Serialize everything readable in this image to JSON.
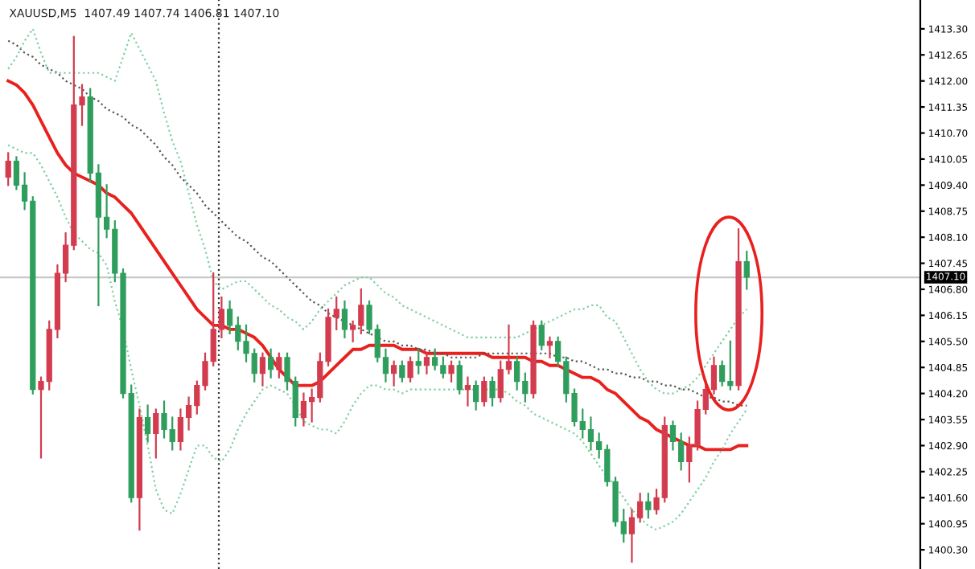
{
  "chart_data": {
    "type": "candlestick",
    "title": "XAUUSD,M5  1407.49 1407.74 1406.81 1407.10",
    "categories": [
      null,
      null,
      null,
      null,
      null,
      null,
      null,
      null,
      null,
      null,
      null,
      null,
      null,
      null,
      null,
      null,
      null,
      null,
      null,
      null,
      null,
      null,
      null,
      null,
      null,
      null,
      null,
      null,
      null,
      null,
      null,
      null,
      null,
      null,
      null,
      null,
      null,
      null,
      null,
      null,
      null,
      null,
      null,
      null,
      null,
      null,
      null,
      null,
      null,
      null,
      null,
      null,
      null,
      null,
      null,
      null,
      null,
      null,
      null,
      null,
      null,
      null,
      null,
      null,
      null,
      null,
      null,
      null,
      null,
      null,
      null,
      null,
      null,
      null,
      null,
      null,
      null,
      null,
      null,
      null,
      null,
      null,
      null,
      null,
      null,
      null,
      null,
      null,
      null,
      null,
      null
    ],
    "ohlc": [
      [
        1409.6,
        1410.2,
        1409.4,
        1410.0
      ],
      [
        1410.0,
        1410.1,
        1409.3,
        1409.4
      ],
      [
        1409.4,
        1409.7,
        1408.8,
        1409.0
      ],
      [
        1409.0,
        1409.1,
        1404.2,
        1404.3
      ],
      [
        1404.3,
        1404.6,
        1402.6,
        1404.5
      ],
      [
        1404.5,
        1406.0,
        1404.3,
        1405.8
      ],
      [
        1405.8,
        1407.4,
        1405.6,
        1407.2
      ],
      [
        1407.2,
        1408.2,
        1407.0,
        1407.9
      ],
      [
        1407.9,
        1413.1,
        1407.8,
        1411.4
      ],
      [
        1411.4,
        1411.9,
        1410.9,
        1411.6
      ],
      [
        1411.6,
        1411.8,
        1409.5,
        1409.7
      ],
      [
        1409.7,
        1409.9,
        1406.4,
        1408.6
      ],
      [
        1408.6,
        1409.4,
        1408.1,
        1408.3
      ],
      [
        1408.3,
        1408.5,
        1407.0,
        1407.2
      ],
      [
        1407.2,
        1407.3,
        1404.1,
        1404.2
      ],
      [
        1404.2,
        1404.4,
        1401.5,
        1401.6
      ],
      [
        1401.6,
        1403.8,
        1400.8,
        1403.6
      ],
      [
        1403.6,
        1403.9,
        1403.0,
        1403.2
      ],
      [
        1403.2,
        1403.8,
        1402.6,
        1403.7
      ],
      [
        1403.7,
        1404.0,
        1403.1,
        1403.3
      ],
      [
        1403.3,
        1403.6,
        1402.8,
        1403.0
      ],
      [
        1403.0,
        1403.8,
        1402.8,
        1403.6
      ],
      [
        1403.6,
        1404.1,
        1403.3,
        1403.9
      ],
      [
        1403.9,
        1404.5,
        1403.7,
        1404.4
      ],
      [
        1404.4,
        1405.2,
        1404.3,
        1405.0
      ],
      [
        1405.0,
        1407.2,
        1404.9,
        1405.8
      ],
      [
        1405.8,
        1406.6,
        1405.6,
        1406.3
      ],
      [
        1406.3,
        1406.5,
        1405.7,
        1405.9
      ],
      [
        1405.9,
        1406.1,
        1405.3,
        1405.5
      ],
      [
        1405.5,
        1405.9,
        1405.0,
        1405.2
      ],
      [
        1405.2,
        1405.3,
        1404.5,
        1404.7
      ],
      [
        1404.7,
        1405.2,
        1404.4,
        1405.1
      ],
      [
        1405.1,
        1405.3,
        1404.6,
        1404.8
      ],
      [
        1404.8,
        1405.2,
        1404.6,
        1405.1
      ],
      [
        1405.1,
        1405.2,
        1404.3,
        1404.5
      ],
      [
        1404.5,
        1404.6,
        1403.4,
        1403.6
      ],
      [
        1403.6,
        1404.2,
        1403.4,
        1404.0
      ],
      [
        1404.0,
        1404.3,
        1403.5,
        1404.1
      ],
      [
        1404.1,
        1405.2,
        1404.0,
        1405.0
      ],
      [
        1405.0,
        1406.3,
        1404.9,
        1406.1
      ],
      [
        1406.1,
        1406.6,
        1405.8,
        1406.3
      ],
      [
        1406.3,
        1406.5,
        1405.6,
        1405.8
      ],
      [
        1405.8,
        1406.0,
        1405.5,
        1405.9
      ],
      [
        1405.9,
        1406.8,
        1405.7,
        1406.4
      ],
      [
        1406.4,
        1406.5,
        1405.7,
        1405.8
      ],
      [
        1405.8,
        1405.9,
        1405.0,
        1405.1
      ],
      [
        1405.1,
        1405.3,
        1404.5,
        1404.7
      ],
      [
        1404.7,
        1405.0,
        1404.4,
        1404.9
      ],
      [
        1404.9,
        1405.0,
        1404.5,
        1404.6
      ],
      [
        1404.6,
        1405.1,
        1404.5,
        1405.0
      ],
      [
        1405.0,
        1405.3,
        1404.7,
        1404.9
      ],
      [
        1404.9,
        1405.2,
        1404.7,
        1405.1
      ],
      [
        1405.1,
        1405.3,
        1404.8,
        1404.9
      ],
      [
        1404.9,
        1405.1,
        1404.6,
        1404.7
      ],
      [
        1404.7,
        1405.0,
        1404.5,
        1404.9
      ],
      [
        1404.9,
        1405.0,
        1404.2,
        1404.3
      ],
      [
        1404.3,
        1404.6,
        1403.9,
        1404.4
      ],
      [
        1404.4,
        1404.5,
        1403.8,
        1404.0
      ],
      [
        1404.0,
        1404.6,
        1403.9,
        1404.5
      ],
      [
        1404.5,
        1404.6,
        1403.9,
        1404.1
      ],
      [
        1404.1,
        1405.0,
        1404.0,
        1404.8
      ],
      [
        1404.8,
        1405.9,
        1404.7,
        1405.0
      ],
      [
        1405.0,
        1405.1,
        1404.3,
        1404.5
      ],
      [
        1404.5,
        1404.7,
        1404.0,
        1404.2
      ],
      [
        1404.2,
        1406.0,
        1404.1,
        1405.9
      ],
      [
        1405.9,
        1406.0,
        1405.3,
        1405.4
      ],
      [
        1405.4,
        1405.6,
        1405.1,
        1405.5
      ],
      [
        1405.5,
        1405.6,
        1404.9,
        1405.0
      ],
      [
        1405.0,
        1405.1,
        1404.0,
        1404.2
      ],
      [
        1404.2,
        1404.3,
        1403.4,
        1403.5
      ],
      [
        1403.5,
        1403.8,
        1403.1,
        1403.3
      ],
      [
        1403.3,
        1403.6,
        1402.8,
        1403.0
      ],
      [
        1403.0,
        1403.2,
        1402.6,
        1402.8
      ],
      [
        1402.8,
        1402.9,
        1401.9,
        1402.0
      ],
      [
        1402.0,
        1402.1,
        1400.9,
        1401.0
      ],
      [
        1401.0,
        1401.3,
        1400.5,
        1400.7
      ],
      [
        1400.7,
        1401.3,
        1400.0,
        1401.1
      ],
      [
        1401.1,
        1401.7,
        1401.0,
        1401.5
      ],
      [
        1401.5,
        1401.7,
        1401.1,
        1401.3
      ],
      [
        1401.3,
        1401.8,
        1401.2,
        1401.6
      ],
      [
        1401.6,
        1403.6,
        1401.5,
        1403.4
      ],
      [
        1403.4,
        1403.5,
        1402.8,
        1403.0
      ],
      [
        1403.0,
        1403.2,
        1402.3,
        1402.5
      ],
      [
        1402.5,
        1403.1,
        1402.0,
        1402.9
      ],
      [
        1402.9,
        1404.0,
        1402.8,
        1403.8
      ],
      [
        1403.8,
        1404.5,
        1403.7,
        1404.3
      ],
      [
        1404.3,
        1405.1,
        1404.2,
        1404.9
      ],
      [
        1404.9,
        1405.0,
        1404.4,
        1404.5
      ],
      [
        1404.5,
        1405.5,
        1404.3,
        1404.4
      ],
      [
        1404.4,
        1408.3,
        1404.3,
        1407.49
      ],
      [
        1407.49,
        1407.74,
        1406.81,
        1407.1
      ]
    ],
    "colors": [
      "#d23c4e",
      "#2f9e5c",
      "#2f9e5c",
      "#2f9e5c",
      "#d23c4e",
      "#d23c4e",
      "#d23c4e",
      "#d23c4e",
      "#d23c4e",
      "#d23c4e",
      "#2f9e5c",
      "#2f9e5c",
      "#2f9e5c",
      "#2f9e5c",
      "#2f9e5c",
      "#2f9e5c",
      "#d23c4e",
      "#2f9e5c",
      "#d23c4e",
      "#2f9e5c",
      "#2f9e5c",
      "#d23c4e",
      "#d23c4e",
      "#d23c4e",
      "#d23c4e",
      "#d23c4e",
      "#d23c4e",
      "#2f9e5c",
      "#2f9e5c",
      "#2f9e5c",
      "#2f9e5c",
      "#d23c4e",
      "#2f9e5c",
      "#d23c4e",
      "#2f9e5c",
      "#2f9e5c",
      "#d23c4e",
      "#d23c4e",
      "#d23c4e",
      "#d23c4e",
      "#d23c4e",
      "#2f9e5c",
      "#d23c4e",
      "#d23c4e",
      "#2f9e5c",
      "#2f9e5c",
      "#2f9e5c",
      "#d23c4e",
      "#2f9e5c",
      "#d23c4e",
      "#2f9e5c",
      "#d23c4e",
      "#2f9e5c",
      "#2f9e5c",
      "#d23c4e",
      "#2f9e5c",
      "#d23c4e",
      "#2f9e5c",
      "#d23c4e",
      "#2f9e5c",
      "#d23c4e",
      "#d23c4e",
      "#2f9e5c",
      "#2f9e5c",
      "#d23c4e",
      "#2f9e5c",
      "#d23c4e",
      "#2f9e5c",
      "#2f9e5c",
      "#2f9e5c",
      "#2f9e5c",
      "#2f9e5c",
      "#2f9e5c",
      "#2f9e5c",
      "#2f9e5c",
      "#2f9e5c",
      "#d23c4e",
      "#d23c4e",
      "#2f9e5c",
      "#d23c4e",
      "#d23c4e",
      "#2f9e5c",
      "#2f9e5c",
      "#d23c4e",
      "#d23c4e",
      "#d23c4e",
      "#d23c4e",
      "#2f9e5c",
      "#2f9e5c",
      "#d23c4e",
      "#2f9e5c"
    ],
    "series": [
      {
        "type": "line",
        "color": "#e8211e",
        "line_style": "solid",
        "values": [
          1412.0,
          1411.9,
          1411.7,
          1411.4,
          1411.0,
          1410.6,
          1410.2,
          1409.9,
          1409.7,
          1409.6,
          1409.5,
          1409.4,
          1409.2,
          1409.1,
          1408.9,
          1408.7,
          1408.4,
          1408.1,
          1407.8,
          1407.5,
          1407.2,
          1406.9,
          1406.6,
          1406.3,
          1406.1,
          1405.9,
          1405.9,
          1405.8,
          1405.8,
          1405.7,
          1405.6,
          1405.4,
          1405.1,
          1404.8,
          1404.6,
          1404.4,
          1404.4,
          1404.4,
          1404.5,
          1404.7,
          1404.9,
          1405.1,
          1405.3,
          1405.3,
          1405.4,
          1405.4,
          1405.4,
          1405.4,
          1405.3,
          1405.3,
          1405.3,
          1405.2,
          1405.2,
          1405.2,
          1405.2,
          1405.2,
          1405.2,
          1405.2,
          1405.2,
          1405.1,
          1405.1,
          1405.1,
          1405.1,
          1405.1,
          1405.0,
          1405.0,
          1404.9,
          1404.9,
          1404.8,
          1404.7,
          1404.6,
          1404.6,
          1404.5,
          1404.3,
          1404.2,
          1404.0,
          1403.8,
          1403.6,
          1403.5,
          1403.3,
          1403.2,
          1403.1,
          1403.0,
          1402.9,
          1402.9,
          1402.8,
          1402.8,
          1402.8,
          1402.8,
          1402.9,
          1402.9
        ]
      },
      {
        "type": "line",
        "color": "#555555",
        "line_style": "dotted",
        "values": [
          1413.0,
          1412.9,
          1412.7,
          1412.6,
          1412.4,
          1412.3,
          1412.2,
          1412.0,
          1411.9,
          1411.8,
          1411.6,
          1411.5,
          1411.3,
          1411.2,
          1411.1,
          1410.9,
          1410.8,
          1410.6,
          1410.4,
          1410.1,
          1409.9,
          1409.6,
          1409.4,
          1409.2,
          1408.9,
          1408.7,
          1408.5,
          1408.3,
          1408.1,
          1408.0,
          1407.8,
          1407.6,
          1407.5,
          1407.3,
          1407.1,
          1406.9,
          1406.7,
          1406.5,
          1406.4,
          1406.2,
          1406.1,
          1406.0,
          1405.9,
          1405.8,
          1405.7,
          1405.6,
          1405.5,
          1405.5,
          1405.4,
          1405.4,
          1405.3,
          1405.3,
          1405.2,
          1405.2,
          1405.1,
          1405.1,
          1405.1,
          1405.1,
          1405.2,
          1405.2,
          1405.2,
          1405.2,
          1405.2,
          1405.2,
          1405.2,
          1405.2,
          1405.2,
          1405.1,
          1405.1,
          1405.0,
          1405.0,
          1404.9,
          1404.8,
          1404.8,
          1404.7,
          1404.7,
          1404.6,
          1404.6,
          1404.5,
          1404.5,
          1404.4,
          1404.4,
          1404.3,
          1404.3,
          1404.2,
          1404.1,
          1404.1,
          1404.0,
          1404.0,
          1403.9,
          1403.9
        ]
      },
      {
        "type": "line",
        "color": "#7fcf9f",
        "line_style": "dotted",
        "values": [
          1412.3,
          1412.6,
          1413.0,
          1413.3,
          1412.7,
          1412.2,
          1412.2,
          1412.2,
          1412.2,
          1412.2,
          1412.2,
          1412.2,
          1412.1,
          1412.0,
          1412.6,
          1413.2,
          1412.8,
          1412.4,
          1412.0,
          1411.2,
          1410.5,
          1410.0,
          1409.2,
          1408.4,
          1407.8,
          1407.0,
          1406.8,
          1406.9,
          1407.0,
          1407.0,
          1406.8,
          1406.6,
          1406.4,
          1406.3,
          1406.1,
          1406.0,
          1405.8,
          1406.0,
          1406.3,
          1406.5,
          1406.7,
          1406.9,
          1407.0,
          1407.1,
          1407.1,
          1406.9,
          1406.7,
          1406.6,
          1406.4,
          1406.3,
          1406.2,
          1406.1,
          1406.0,
          1405.9,
          1405.8,
          1405.7,
          1405.6,
          1405.6,
          1405.6,
          1405.6,
          1405.6,
          1405.6,
          1405.6,
          1405.7,
          1405.8,
          1405.9,
          1406.0,
          1406.1,
          1406.2,
          1406.3,
          1406.3,
          1406.4,
          1406.4,
          1406.1,
          1406.0,
          1405.6,
          1405.2,
          1404.8,
          1404.5,
          1404.3,
          1404.2,
          1404.2,
          1404.3,
          1404.4,
          1404.6,
          1404.9,
          1405.2,
          1405.5,
          1405.8,
          1406.1,
          1406.3
        ]
      },
      {
        "type": "line",
        "color": "#7fcf9f",
        "line_style": "dotted",
        "values": [
          1410.4,
          1410.3,
          1410.2,
          1410.2,
          1409.9,
          1409.5,
          1409.1,
          1408.6,
          1408.2,
          1408.0,
          1407.8,
          1407.7,
          1407.4,
          1406.5,
          1405.8,
          1404.8,
          1403.9,
          1402.9,
          1401.8,
          1401.3,
          1401.2,
          1401.7,
          1402.3,
          1402.9,
          1402.9,
          1402.6,
          1402.5,
          1402.8,
          1403.3,
          1403.7,
          1404.0,
          1404.3,
          1404.4,
          1404.3,
          1404.2,
          1403.9,
          1403.5,
          1403.4,
          1403.3,
          1403.3,
          1403.2,
          1403.5,
          1403.9,
          1404.2,
          1404.4,
          1404.4,
          1404.3,
          1404.3,
          1404.2,
          1404.3,
          1404.3,
          1404.3,
          1404.3,
          1404.3,
          1404.3,
          1404.3,
          1404.3,
          1404.3,
          1404.3,
          1404.3,
          1404.3,
          1404.2,
          1404.0,
          1403.9,
          1403.7,
          1403.6,
          1403.5,
          1403.4,
          1403.3,
          1403.2,
          1403.0,
          1402.7,
          1402.4,
          1402.1,
          1401.9,
          1401.6,
          1401.3,
          1401.1,
          1400.9,
          1400.8,
          1400.9,
          1401.0,
          1401.2,
          1401.5,
          1401.8,
          1402.1,
          1402.5,
          1402.8,
          1403.2,
          1403.5,
          1403.8
        ]
      }
    ],
    "ylim": [
      1399.82,
      1414.02
    ],
    "yticks": [
      {
        "value": 1400.3,
        "label": "1400.30"
      },
      {
        "value": 1400.95,
        "label": "1400.95"
      },
      {
        "value": 1401.6,
        "label": "1401.60"
      },
      {
        "value": 1402.25,
        "label": "1402.25"
      },
      {
        "value": 1402.9,
        "label": "1402.90"
      },
      {
        "value": 1403.55,
        "label": "1403.55"
      },
      {
        "value": 1404.2,
        "label": "1404.20"
      },
      {
        "value": 1404.85,
        "label": "1404.85"
      },
      {
        "value": 1405.5,
        "label": "1405.50"
      },
      {
        "value": 1406.15,
        "label": "1406.15"
      },
      {
        "value": 1406.8,
        "label": "1406.80"
      },
      {
        "value": 1407.45,
        "label": "1407.45"
      },
      {
        "value": 1408.1,
        "label": "1408.10"
      },
      {
        "value": 1408.75,
        "label": "1408.75"
      },
      {
        "value": 1409.4,
        "label": "1409.40"
      },
      {
        "value": 1410.05,
        "label": "1410.05"
      },
      {
        "value": 1410.7,
        "label": "1410.70"
      },
      {
        "value": 1411.35,
        "label": "1411.35"
      },
      {
        "value": 1412.0,
        "label": "1412.00"
      },
      {
        "value": 1412.65,
        "label": "1412.65"
      },
      {
        "value": 1413.3,
        "label": "1413.30"
      }
    ],
    "ref_lines": [
      {
        "axis": "y",
        "value": 1407.1,
        "label": "1407.10",
        "color": "#c8c8c8",
        "line_style": "solid"
      }
    ],
    "tick_labels": "y",
    "grid": false,
    "legend": false
  }
}
